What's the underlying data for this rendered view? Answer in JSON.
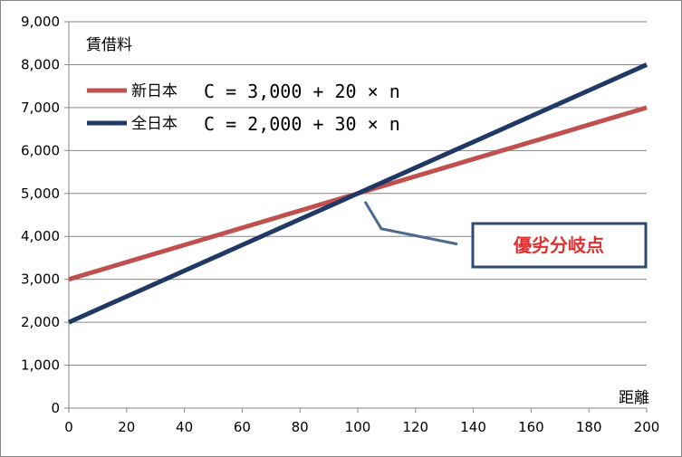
{
  "chart_data": {
    "type": "line",
    "ylabel": "賃借料",
    "xlabel": "距離",
    "xlim": [
      0,
      200
    ],
    "ylim": [
      0,
      9000
    ],
    "x_ticks": [
      "0",
      "20",
      "40",
      "60",
      "80",
      "100",
      "120",
      "140",
      "160",
      "180",
      "200"
    ],
    "y_ticks": [
      "0",
      "1,000",
      "2,000",
      "3,000",
      "4,000",
      "5,000",
      "6,000",
      "7,000",
      "8,000",
      "9,000"
    ],
    "grid": "horizontal",
    "legend_position": "top-left",
    "series": [
      {
        "name": "新日本",
        "formula": "C = 3,000 + 20 × n",
        "color": "#c0504d",
        "x": [
          0,
          200
        ],
        "y": [
          3000,
          7000
        ]
      },
      {
        "name": "全日本",
        "formula": "C = 2,000 + 30 × n",
        "color": "#1f3864",
        "x": [
          0,
          200
        ],
        "y": [
          2000,
          8000
        ]
      }
    ],
    "annotation": {
      "text": "優劣分岐点",
      "color": "#e03030",
      "border_color": "#2e4b73",
      "x": 100,
      "y": 5000
    }
  }
}
